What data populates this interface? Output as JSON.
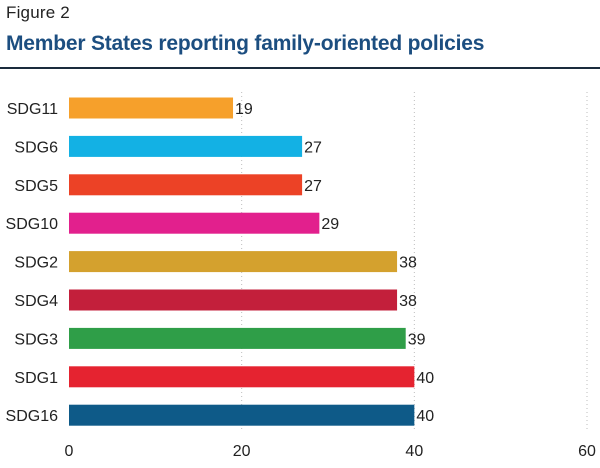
{
  "figure_label": "Figure 2",
  "figure_title": "Member States reporting family-oriented policies",
  "chart_data": {
    "type": "bar",
    "orientation": "horizontal",
    "title": "Member States reporting family-oriented policies",
    "xlabel": "",
    "ylabel": "",
    "xlim": [
      0,
      60
    ],
    "xticks": [
      0,
      20,
      40,
      60
    ],
    "grid": "vertical dotted",
    "categories": [
      "SDG11",
      "SDG6",
      "SDG5",
      "SDG10",
      "SDG2",
      "SDG4",
      "SDG3",
      "SDG1",
      "SDG16"
    ],
    "values": [
      19,
      27,
      27,
      29,
      38,
      38,
      39,
      40,
      40
    ],
    "colors": [
      "#f6a02b",
      "#13b1e4",
      "#ec4226",
      "#e2208d",
      "#d4a12e",
      "#c31f3b",
      "#2f9e48",
      "#e52330",
      "#0e5a88"
    ]
  }
}
